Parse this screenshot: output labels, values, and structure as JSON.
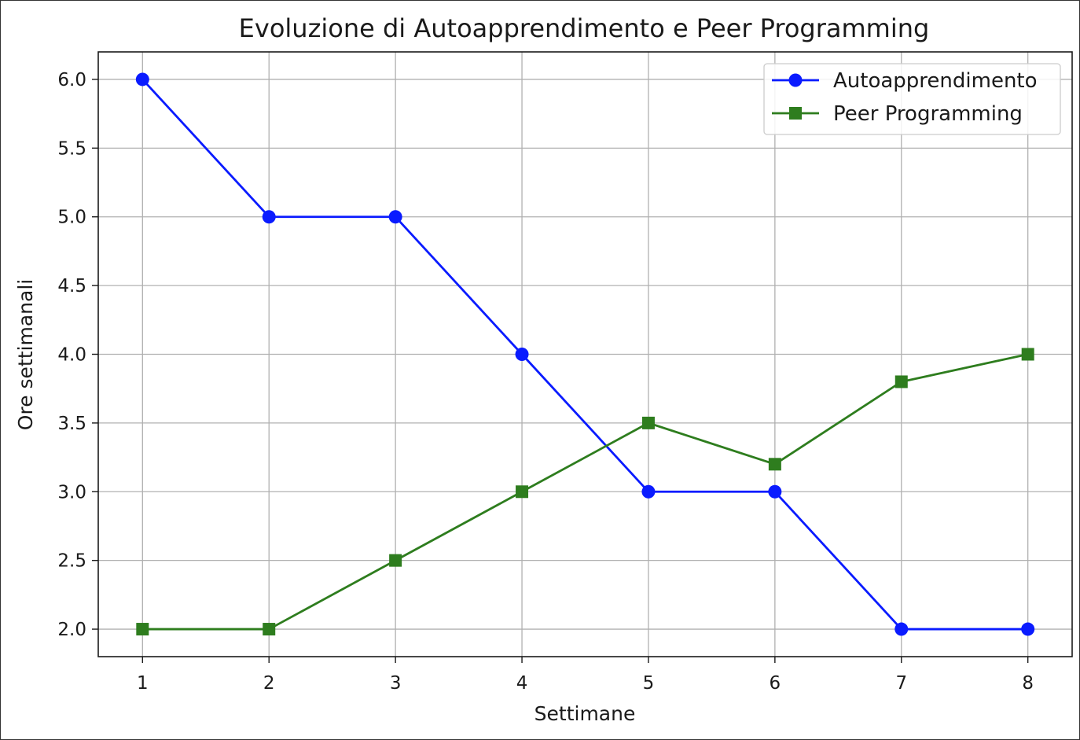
{
  "chart_data": {
    "type": "line",
    "title": "Evoluzione di Autoapprendimento e Peer Programming",
    "xlabel": "Settimane",
    "ylabel": "Ore settimanali",
    "x": [
      1,
      2,
      3,
      4,
      5,
      6,
      7,
      8
    ],
    "xlim": [
      0.65,
      8.35
    ],
    "ylim": [
      1.8,
      6.2
    ],
    "xticks": [
      "1",
      "2",
      "3",
      "4",
      "5",
      "6",
      "7",
      "8"
    ],
    "yticks": [
      "2.0",
      "2.5",
      "3.0",
      "3.5",
      "4.0",
      "4.5",
      "5.0",
      "5.5",
      "6.0"
    ],
    "grid": true,
    "legend_position": "top-right",
    "series": [
      {
        "name": "Autoapprendimento",
        "values": [
          6,
          5,
          5,
          4,
          3,
          3,
          2,
          2
        ],
        "color": "#0a1bff",
        "marker": "circle"
      },
      {
        "name": "Peer Programming",
        "values": [
          2,
          2,
          2.5,
          3,
          3.5,
          3.2,
          3.8,
          4
        ],
        "color": "#2e7d1e",
        "marker": "square"
      }
    ]
  }
}
